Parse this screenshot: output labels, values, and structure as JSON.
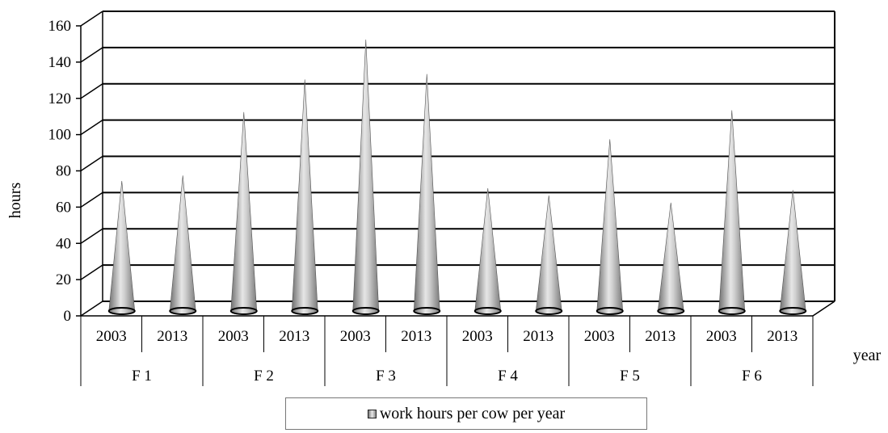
{
  "chart_data": {
    "type": "bar",
    "bar_shape": "cone",
    "categories": [
      "2003",
      "2013",
      "2003",
      "2013",
      "2003",
      "2013",
      "2003",
      "2013",
      "2003",
      "2013",
      "2003",
      "2013"
    ],
    "groups": [
      "F 1",
      "F 2",
      "F 3",
      "F 4",
      "F 5",
      "F 6"
    ],
    "series": [
      {
        "name": "work hours per cow per year",
        "values": [
          70,
          73,
          108,
          126,
          148,
          129,
          66,
          62,
          93,
          58,
          109,
          65
        ],
        "color": "#a9a9a9"
      }
    ],
    "ylabel": "hours",
    "xlabel": "year",
    "ylim": [
      0,
      160
    ],
    "yticks": [
      0,
      20,
      40,
      60,
      80,
      100,
      120,
      140,
      160
    ],
    "grid": true,
    "legend_position": "bottom"
  }
}
